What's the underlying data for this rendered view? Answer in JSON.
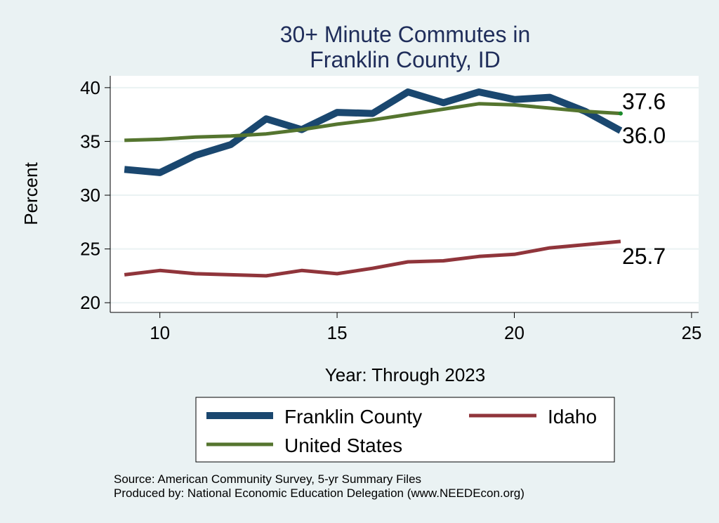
{
  "chart_data": {
    "type": "line",
    "title": [
      "30+ Minute Commutes in",
      "Franklin County, ID"
    ],
    "xlabel": "Year: Through 2023",
    "ylabel": "Percent",
    "xlim": [
      8.6,
      25.2
    ],
    "ylim": [
      19.1,
      41.1
    ],
    "xticks": [
      10,
      15,
      20,
      25
    ],
    "yticks": [
      20,
      25,
      30,
      35,
      40
    ],
    "grid": true,
    "x": [
      9,
      10,
      11,
      12,
      13,
      14,
      15,
      16,
      17,
      18,
      19,
      20,
      21,
      22,
      23
    ],
    "series": [
      {
        "name": "Franklin County",
        "color": "#1a476f",
        "width": 10,
        "values": [
          32.4,
          32.1,
          33.7,
          34.7,
          37.1,
          36.1,
          37.7,
          37.6,
          39.6,
          38.6,
          39.6,
          38.9,
          39.1,
          37.8,
          36.0
        ],
        "end_label": "36.0"
      },
      {
        "name": "Idaho",
        "color": "#90353b",
        "width": 5,
        "values": [
          22.6,
          23.0,
          22.7,
          22.6,
          22.5,
          23.0,
          22.7,
          23.2,
          23.8,
          23.9,
          24.3,
          24.5,
          25.1,
          25.4,
          25.7
        ],
        "end_label": "25.7"
      },
      {
        "name": "United States",
        "color": "#55752f",
        "width": 5,
        "values": [
          35.1,
          35.2,
          35.4,
          35.5,
          35.7,
          36.1,
          36.6,
          37.0,
          37.5,
          38.0,
          38.5,
          38.4,
          38.1,
          37.8,
          37.6
        ],
        "end_label": "37.6"
      }
    ],
    "legend": {
      "position": "bottom",
      "entries": [
        "Franklin County",
        "Idaho",
        "United States"
      ]
    },
    "source_lines": [
      "Source: American Community Survey, 5-yr Summary Files",
      "Produced by: National Economic Education Delegation (www.NEEDEcon.org)"
    ]
  }
}
